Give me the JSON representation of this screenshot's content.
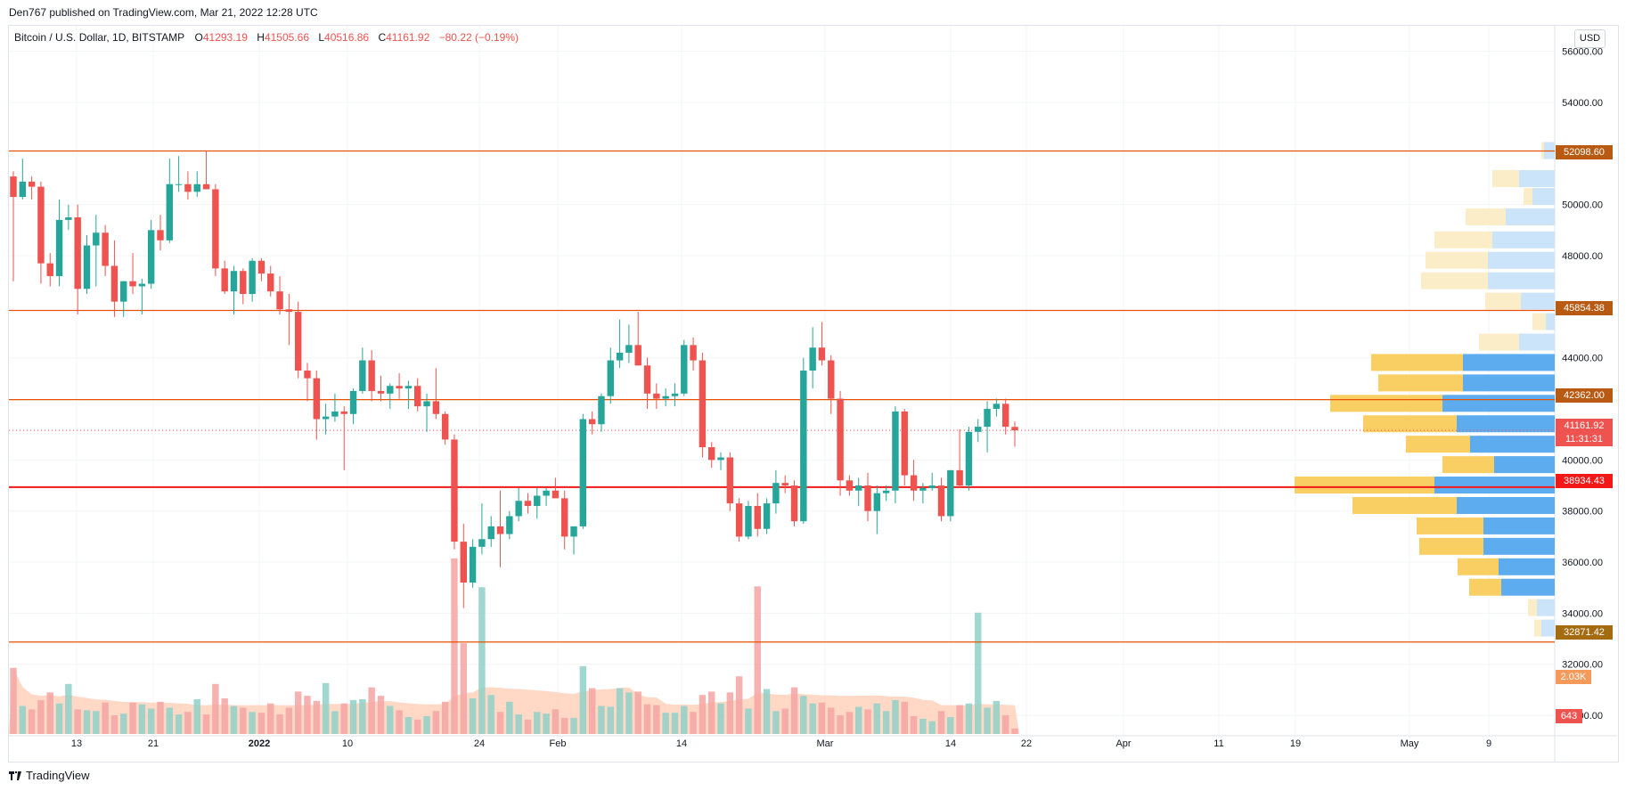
{
  "publisher_line": "Den767 published on TradingView.com, Mar 21, 2022 12:28 UTC",
  "legend": {
    "symbol": "Bitcoin / U.S. Dollar, 1D, BITSTAMP",
    "o_key": "O",
    "o_val": "41293.19",
    "h_key": "H",
    "h_val": "41505.66",
    "l_key": "L",
    "l_val": "40516.86",
    "c_key": "C",
    "c_val": "41161.92",
    "change": "−80.22 (−0.19%)"
  },
  "currency_button": "USD",
  "footer_brand": "TradingView",
  "colors": {
    "up": "#26a69a",
    "down": "#ef5350",
    "up_volume": "#8fd0c8",
    "down_volume": "#f4a3a3",
    "volume_ma_fill": "#ffccb3",
    "level_line": "#e65100",
    "key_level_line": "#f21818",
    "profile_up": "#5eacf0",
    "profile_down": "#f9cf63",
    "profile_up_light": "#cce4fa",
    "profile_down_light": "#fcedc9",
    "grid": "#f3f4f6",
    "axis_text": "#131722"
  },
  "price_tags": {
    "level_52098": "52098.60",
    "level_45854": "45854.38",
    "level_42362": "42362.00",
    "last_price": "41161.92",
    "countdown": "11:31:31",
    "level_38934": "38934.43",
    "level_32871": "32871.42",
    "volume_ma": "2.03K",
    "volume_last": "643"
  },
  "chart_data": {
    "type": "candlestick",
    "title": "Bitcoin / U.S. Dollar, 1D, BITSTAMP",
    "x_ticks": [
      "13",
      "21",
      "2022",
      "10",
      "24",
      "Feb",
      "14",
      "Mar",
      "14",
      "22",
      "Apr",
      "11",
      "19",
      "May",
      "9"
    ],
    "y_ticks": [
      "56000.00",
      "54000.00",
      "50000.00",
      "48000.00",
      "44000.00",
      "40000.00",
      "38000.00",
      "36000.00",
      "34000.00",
      "32000.00",
      "30000.00"
    ],
    "ylim": [
      29200,
      57000
    ],
    "horizontal_levels": [
      52098.6,
      45854.38,
      42362.0,
      38934.43,
      32871.42
    ],
    "last_price": 41161.92,
    "candles": [
      {
        "o": 51100,
        "h": 51300,
        "l": 47000,
        "c": 50300
      },
      {
        "o": 50300,
        "h": 51800,
        "l": 50200,
        "c": 50900
      },
      {
        "o": 50900,
        "h": 51100,
        "l": 50200,
        "c": 50700
      },
      {
        "o": 50700,
        "h": 50900,
        "l": 46900,
        "c": 47700
      },
      {
        "o": 47700,
        "h": 48100,
        "l": 46800,
        "c": 47200
      },
      {
        "o": 47200,
        "h": 50200,
        "l": 46800,
        "c": 49400
      },
      {
        "o": 49400,
        "h": 50000,
        "l": 49000,
        "c": 49500
      },
      {
        "o": 49500,
        "h": 50000,
        "l": 45700,
        "c": 46700
      },
      {
        "o": 46700,
        "h": 48800,
        "l": 46500,
        "c": 48400
      },
      {
        "o": 48400,
        "h": 49600,
        "l": 46800,
        "c": 48900
      },
      {
        "o": 48900,
        "h": 49200,
        "l": 47200,
        "c": 47600
      },
      {
        "o": 47600,
        "h": 48600,
        "l": 45600,
        "c": 46200
      },
      {
        "o": 46200,
        "h": 47000,
        "l": 45600,
        "c": 47000
      },
      {
        "o": 47000,
        "h": 48100,
        "l": 46500,
        "c": 46800
      },
      {
        "o": 46800,
        "h": 47100,
        "l": 45700,
        "c": 46900
      },
      {
        "o": 46900,
        "h": 49400,
        "l": 46700,
        "c": 49000
      },
      {
        "o": 49000,
        "h": 49600,
        "l": 48200,
        "c": 48600
      },
      {
        "o": 48600,
        "h": 51800,
        "l": 48500,
        "c": 50800
      },
      {
        "o": 50800,
        "h": 51900,
        "l": 50500,
        "c": 50800
      },
      {
        "o": 50800,
        "h": 51300,
        "l": 50200,
        "c": 50500
      },
      {
        "o": 50500,
        "h": 51300,
        "l": 50300,
        "c": 50800
      },
      {
        "o": 50800,
        "h": 52100,
        "l": 50600,
        "c": 50600
      },
      {
        "o": 50600,
        "h": 50800,
        "l": 47200,
        "c": 47500
      },
      {
        "o": 47500,
        "h": 47800,
        "l": 46500,
        "c": 46600
      },
      {
        "o": 46600,
        "h": 47600,
        "l": 45700,
        "c": 47400
      },
      {
        "o": 47400,
        "h": 47500,
        "l": 46100,
        "c": 46500
      },
      {
        "o": 46500,
        "h": 47900,
        "l": 46200,
        "c": 47800
      },
      {
        "o": 47800,
        "h": 47900,
        "l": 47000,
        "c": 47300
      },
      {
        "o": 47300,
        "h": 47600,
        "l": 46400,
        "c": 46600
      },
      {
        "o": 46600,
        "h": 47200,
        "l": 45700,
        "c": 45900
      },
      {
        "o": 45900,
        "h": 46500,
        "l": 44500,
        "c": 45800
      },
      {
        "o": 45800,
        "h": 46200,
        "l": 43200,
        "c": 43500
      },
      {
        "o": 43500,
        "h": 43800,
        "l": 42300,
        "c": 43200
      },
      {
        "o": 43200,
        "h": 43500,
        "l": 40800,
        "c": 41600
      },
      {
        "o": 41600,
        "h": 42200,
        "l": 41000,
        "c": 41700
      },
      {
        "o": 41700,
        "h": 42600,
        "l": 41500,
        "c": 41900
      },
      {
        "o": 41900,
        "h": 42100,
        "l": 39600,
        "c": 41800
      },
      {
        "o": 41800,
        "h": 42800,
        "l": 41400,
        "c": 42700
      },
      {
        "o": 42700,
        "h": 44400,
        "l": 42600,
        "c": 43900
      },
      {
        "o": 43900,
        "h": 44300,
        "l": 42300,
        "c": 42700
      },
      {
        "o": 42700,
        "h": 43300,
        "l": 42300,
        "c": 42600
      },
      {
        "o": 42600,
        "h": 43000,
        "l": 42000,
        "c": 42900
      },
      {
        "o": 42900,
        "h": 43400,
        "l": 42400,
        "c": 42800
      },
      {
        "o": 42800,
        "h": 43100,
        "l": 42000,
        "c": 42900
      },
      {
        "o": 42900,
        "h": 43200,
        "l": 41900,
        "c": 42100
      },
      {
        "o": 42100,
        "h": 42600,
        "l": 41100,
        "c": 42300
      },
      {
        "o": 42300,
        "h": 43600,
        "l": 41600,
        "c": 41800
      },
      {
        "o": 41800,
        "h": 41900,
        "l": 40600,
        "c": 40800
      },
      {
        "o": 40800,
        "h": 41000,
        "l": 36500,
        "c": 36800
      },
      {
        "o": 36800,
        "h": 37500,
        "l": 34200,
        "c": 35200
      },
      {
        "o": 35200,
        "h": 36900,
        "l": 35000,
        "c": 36600
      },
      {
        "o": 36600,
        "h": 38300,
        "l": 36300,
        "c": 36900
      },
      {
        "o": 36900,
        "h": 37800,
        "l": 36600,
        "c": 37400
      },
      {
        "o": 37400,
        "h": 38800,
        "l": 35800,
        "c": 37100
      },
      {
        "o": 37100,
        "h": 38000,
        "l": 36900,
        "c": 37800
      },
      {
        "o": 37800,
        "h": 38900,
        "l": 37600,
        "c": 38400
      },
      {
        "o": 38400,
        "h": 38700,
        "l": 37900,
        "c": 38200
      },
      {
        "o": 38200,
        "h": 38900,
        "l": 37700,
        "c": 38600
      },
      {
        "o": 38600,
        "h": 38900,
        "l": 38200,
        "c": 38800
      },
      {
        "o": 38800,
        "h": 39300,
        "l": 38600,
        "c": 38500
      },
      {
        "o": 38500,
        "h": 38800,
        "l": 36500,
        "c": 37000
      },
      {
        "o": 37000,
        "h": 37400,
        "l": 36300,
        "c": 37400
      },
      {
        "o": 37400,
        "h": 41800,
        "l": 37300,
        "c": 41600
      },
      {
        "o": 41600,
        "h": 41900,
        "l": 41000,
        "c": 41400
      },
      {
        "o": 41400,
        "h": 42600,
        "l": 41100,
        "c": 42500
      },
      {
        "o": 42500,
        "h": 44400,
        "l": 42200,
        "c": 43900
      },
      {
        "o": 43900,
        "h": 45500,
        "l": 43600,
        "c": 44200
      },
      {
        "o": 44200,
        "h": 45300,
        "l": 43800,
        "c": 44500
      },
      {
        "o": 44500,
        "h": 45800,
        "l": 43700,
        "c": 43700
      },
      {
        "o": 43700,
        "h": 44000,
        "l": 42000,
        "c": 42600
      },
      {
        "o": 42600,
        "h": 43000,
        "l": 42000,
        "c": 42400
      },
      {
        "o": 42400,
        "h": 42800,
        "l": 42100,
        "c": 42500
      },
      {
        "o": 42500,
        "h": 43000,
        "l": 42100,
        "c": 42600
      },
      {
        "o": 42600,
        "h": 44700,
        "l": 42500,
        "c": 44500
      },
      {
        "o": 44500,
        "h": 44800,
        "l": 43500,
        "c": 43900
      },
      {
        "o": 43900,
        "h": 44200,
        "l": 40100,
        "c": 40500
      },
      {
        "o": 40500,
        "h": 40700,
        "l": 39700,
        "c": 40000
      },
      {
        "o": 40000,
        "h": 40300,
        "l": 39600,
        "c": 40100
      },
      {
        "o": 40100,
        "h": 40300,
        "l": 38000,
        "c": 38300
      },
      {
        "o": 38300,
        "h": 38500,
        "l": 36800,
        "c": 37000
      },
      {
        "o": 37000,
        "h": 38400,
        "l": 36900,
        "c": 38200
      },
      {
        "o": 38200,
        "h": 38700,
        "l": 37000,
        "c": 37300
      },
      {
        "o": 37300,
        "h": 38500,
        "l": 37100,
        "c": 38300
      },
      {
        "o": 38300,
        "h": 39600,
        "l": 37900,
        "c": 39100
      },
      {
        "o": 39100,
        "h": 39400,
        "l": 38700,
        "c": 39000
      },
      {
        "o": 39000,
        "h": 39200,
        "l": 37400,
        "c": 37600
      },
      {
        "o": 37600,
        "h": 44000,
        "l": 37500,
        "c": 43500
      },
      {
        "o": 43500,
        "h": 45200,
        "l": 42800,
        "c": 44400
      },
      {
        "o": 44400,
        "h": 45400,
        "l": 43700,
        "c": 43900
      },
      {
        "o": 43900,
        "h": 44100,
        "l": 41800,
        "c": 42400
      },
      {
        "o": 42400,
        "h": 42700,
        "l": 38600,
        "c": 39200
      },
      {
        "o": 39200,
        "h": 39400,
        "l": 38600,
        "c": 38800
      },
      {
        "o": 38800,
        "h": 39300,
        "l": 38200,
        "c": 39000
      },
      {
        "o": 39000,
        "h": 39500,
        "l": 37600,
        "c": 38000
      },
      {
        "o": 38000,
        "h": 39000,
        "l": 37100,
        "c": 38700
      },
      {
        "o": 38700,
        "h": 39000,
        "l": 38400,
        "c": 38800
      },
      {
        "o": 38800,
        "h": 42100,
        "l": 38300,
        "c": 41900
      },
      {
        "o": 41900,
        "h": 42000,
        "l": 39000,
        "c": 39400
      },
      {
        "o": 39400,
        "h": 40000,
        "l": 38400,
        "c": 38800
      },
      {
        "o": 38800,
        "h": 39100,
        "l": 38300,
        "c": 38900
      },
      {
        "o": 38900,
        "h": 39500,
        "l": 38800,
        "c": 39000
      },
      {
        "o": 39000,
        "h": 39300,
        "l": 37600,
        "c": 37800
      },
      {
        "o": 37800,
        "h": 39600,
        "l": 37600,
        "c": 39600
      },
      {
        "o": 39600,
        "h": 41200,
        "l": 38900,
        "c": 39000
      },
      {
        "o": 39000,
        "h": 41300,
        "l": 38800,
        "c": 41100
      },
      {
        "o": 41100,
        "h": 41600,
        "l": 40700,
        "c": 41300
      },
      {
        "o": 41300,
        "h": 42300,
        "l": 40300,
        "c": 42000
      },
      {
        "o": 42000,
        "h": 42400,
        "l": 41700,
        "c": 42200
      },
      {
        "o": 42200,
        "h": 42400,
        "l": 41000,
        "c": 41300
      },
      {
        "o": 41293.19,
        "h": 41505.66,
        "l": 40516.86,
        "c": 41161.92
      }
    ],
    "volume": [
      7800,
      3300,
      2900,
      4000,
      4900,
      3600,
      5900,
      2900,
      2800,
      2700,
      3700,
      2200,
      2400,
      3700,
      3500,
      3000,
      3800,
      3100,
      2300,
      2600,
      4100,
      2300,
      5900,
      4200,
      3300,
      3100,
      2600,
      2500,
      3600,
      2300,
      3100,
      5000,
      4500,
      3900,
      6000,
      2700,
      3600,
      4000,
      4100,
      5500,
      4500,
      3300,
      2800,
      2000,
      1700,
      2100,
      2700,
      3800,
      20700,
      10700,
      4200,
      17300,
      4600,
      2600,
      3800,
      2300,
      1700,
      2600,
      2400,
      2900,
      1900,
      1900,
      8000,
      5400,
      3300,
      3200,
      5400,
      4900,
      5000,
      3500,
      3400,
      2500,
      2500,
      3300,
      2600,
      4600,
      5000,
      3600,
      4900,
      6800,
      3000,
      17400,
      5300,
      2700,
      3000,
      5500,
      4500,
      3600,
      3700,
      3100,
      2200,
      2600,
      3200,
      2900,
      3600,
      2700,
      4000,
      3800,
      2100,
      1800,
      1500,
      2700,
      2000,
      3400,
      3600,
      14300,
      3100,
      3900,
      2200,
      643
    ],
    "volume_ma_label": "2.03K",
    "volume_profile": [
      {
        "price": 52098,
        "up": 12,
        "down": 3,
        "light": true
      },
      {
        "price": 51000,
        "up": 40,
        "down": 30,
        "light": true
      },
      {
        "price": 50300,
        "up": 25,
        "down": 10,
        "light": true
      },
      {
        "price": 49500,
        "up": 55,
        "down": 45,
        "light": true
      },
      {
        "price": 48600,
        "up": 70,
        "down": 65,
        "light": true
      },
      {
        "price": 47800,
        "up": 75,
        "down": 70,
        "light": true
      },
      {
        "price": 47000,
        "up": 75,
        "down": 75,
        "light": true
      },
      {
        "price": 46200,
        "up": 38,
        "down": 40,
        "light": true
      },
      {
        "price": 45400,
        "up": 10,
        "down": 15,
        "light": true
      },
      {
        "price": 44600,
        "up": 40,
        "down": 45,
        "light": true
      },
      {
        "price": 43800,
        "up": 103,
        "down": 103
      },
      {
        "price": 43000,
        "up": 103,
        "down": 95
      },
      {
        "price": 42200,
        "up": 126,
        "down": 126
      },
      {
        "price": 41400,
        "up": 110,
        "down": 105
      },
      {
        "price": 40600,
        "up": 95,
        "down": 72
      },
      {
        "price": 39800,
        "up": 68,
        "down": 58
      },
      {
        "price": 39000,
        "up": 135,
        "down": 157
      },
      {
        "price": 38200,
        "up": 110,
        "down": 117
      },
      {
        "price": 37400,
        "up": 80,
        "down": 75
      },
      {
        "price": 36600,
        "up": 80,
        "down": 72
      },
      {
        "price": 35800,
        "up": 63,
        "down": 46
      },
      {
        "price": 35000,
        "up": 60,
        "down": 36
      },
      {
        "price": 34200,
        "up": 20,
        "down": 10,
        "light": true
      },
      {
        "price": 33400,
        "up": 15,
        "down": 8,
        "light": true
      }
    ]
  }
}
